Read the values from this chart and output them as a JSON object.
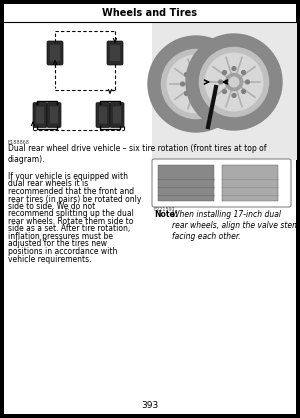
{
  "title": "Wheels and Tires",
  "page_number": "393",
  "diagram_caption": "Dual rear wheel drive vehicle – six tire rotation (front tires at top of\ndiagram).",
  "main_text_lines": [
    "If your vehicle is equipped with",
    "dual rear wheels it is",
    "recommended that the front and",
    "rear tires (in pairs) be rotated only",
    "side to side. We do not",
    "recommend splitting up the dual",
    "rear wheels. Rotate them side to",
    "side as a set. After tire rotation,",
    "inflation pressures must be",
    "adjusted for the tires new",
    "positions in accordance with",
    "vehicle requirements."
  ],
  "note_label": "Note:",
  "note_text": "When installing 17-inch dual\nrear wheels, align the valve stems\nfacing each other.",
  "diagram_code": "E188868",
  "wheel_code": "E221597"
}
